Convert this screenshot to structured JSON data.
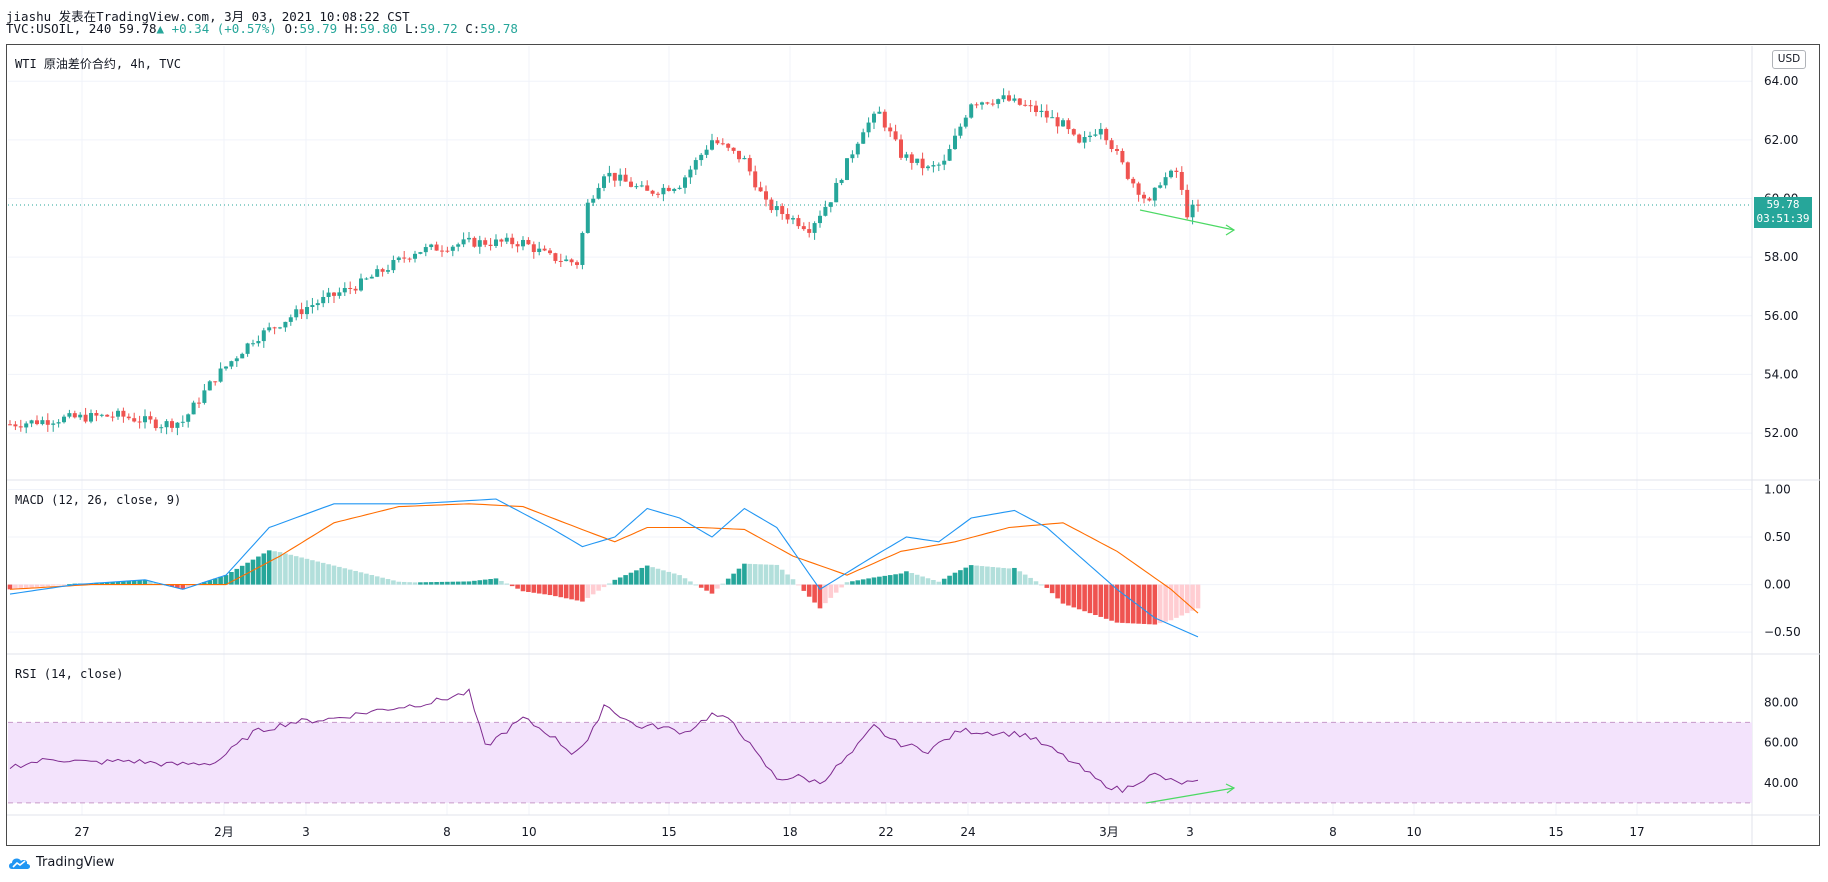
{
  "header": {
    "line1": "jiashu 发表在TradingView.com, 3月 03, 2021 10:08:22 CST",
    "symbol": "TVC:USOIL, 240",
    "last": "59.78",
    "arrow": "▲",
    "change": "+0.34 (+0.57%)",
    "o_label": "O:",
    "o": "59.79",
    "h_label": "H:",
    "h": "59.80",
    "l_label": "L:",
    "l": "59.72",
    "c_label": "C:",
    "c": "59.78"
  },
  "main_pane": {
    "label": "WTI 原油差价合约, 4h, TVC"
  },
  "macd_pane": {
    "label": "MACD (12, 26, close, 9)"
  },
  "rsi_pane": {
    "label": "RSI (14, close)"
  },
  "currency_button": "USD",
  "price_tag": {
    "price": "59.78",
    "countdown": "03:51:39"
  },
  "footer": {
    "brand": "TradingView"
  },
  "colors": {
    "up": "#26a69a",
    "down": "#ef5350",
    "macd": "#2196f3",
    "signal": "#ff6d00",
    "rsi": "#7e2a8f",
    "rsi_band": "#f3e3fc",
    "divergence": "#4cd964"
  },
  "chart_data": [
    {
      "type": "candlestick",
      "title": "WTI 原油差价合约, 4h, TVC",
      "y_ticks": [
        52,
        54,
        56,
        58,
        60,
        62,
        64
      ],
      "y_tick_labels": [
        "52.00",
        "54.00",
        "56.00",
        "58.00",
        "60.00",
        "62.00",
        "64.00"
      ],
      "ylim": [
        50.4,
        65.2
      ],
      "x_tick_labels": [
        "27",
        "2月",
        "3",
        "8",
        "10",
        "15",
        "18",
        "22",
        "24",
        "3月",
        "3",
        "8",
        "10",
        "15",
        "17"
      ],
      "last_price": 59.78,
      "close_keypoints": [
        [
          0,
          52.3
        ],
        [
          10,
          52.5
        ],
        [
          20,
          52.6
        ],
        [
          28,
          52.3
        ],
        [
          32,
          52.4
        ],
        [
          38,
          53.9
        ],
        [
          45,
          55.2
        ],
        [
          55,
          56.3
        ],
        [
          65,
          57.1
        ],
        [
          75,
          58.2
        ],
        [
          85,
          58.5
        ],
        [
          95,
          58.5
        ],
        [
          100,
          58.0
        ],
        [
          105,
          57.8
        ],
        [
          107,
          59.8
        ],
        [
          110,
          60.9
        ],
        [
          118,
          60.2
        ],
        [
          124,
          60.5
        ],
        [
          130,
          62.0
        ],
        [
          136,
          61.3
        ],
        [
          140,
          59.8
        ],
        [
          145,
          59.3
        ],
        [
          148,
          59.0
        ],
        [
          152,
          60.0
        ],
        [
          158,
          62.4
        ],
        [
          161,
          62.9
        ],
        [
          165,
          61.5
        ],
        [
          170,
          61.0
        ],
        [
          173,
          61.2
        ],
        [
          178,
          63.3
        ],
        [
          184,
          63.4
        ],
        [
          190,
          63.0
        ],
        [
          195,
          62.5
        ],
        [
          198,
          61.8
        ],
        [
          202,
          62.5
        ],
        [
          207,
          60.8
        ],
        [
          211,
          59.8
        ],
        [
          213,
          60.6
        ],
        [
          216,
          60.9
        ],
        [
          218,
          59.5
        ],
        [
          220,
          59.78
        ]
      ],
      "annotation": "divergence trend line"
    },
    {
      "type": "line",
      "title": "MACD (12, 26, close, 9)",
      "y_ticks": [
        -0.5,
        0,
        0.5,
        1
      ],
      "y_tick_labels": [
        "−0.50",
        "0.00",
        "0.50",
        "1.00"
      ],
      "ylim": [
        -0.73,
        1.1
      ],
      "series": [
        {
          "name": "MACD",
          "keypoints": [
            [
              0,
              -0.1
            ],
            [
              12,
              0.0
            ],
            [
              25,
              0.05
            ],
            [
              32,
              -0.05
            ],
            [
              40,
              0.1
            ],
            [
              48,
              0.6
            ],
            [
              60,
              0.85
            ],
            [
              75,
              0.85
            ],
            [
              90,
              0.9
            ],
            [
              100,
              0.6
            ],
            [
              106,
              0.4
            ],
            [
              112,
              0.5
            ],
            [
              118,
              0.8
            ],
            [
              124,
              0.7
            ],
            [
              130,
              0.5
            ],
            [
              136,
              0.8
            ],
            [
              142,
              0.6
            ],
            [
              150,
              -0.05
            ],
            [
              160,
              0.3
            ],
            [
              166,
              0.5
            ],
            [
              172,
              0.45
            ],
            [
              178,
              0.7
            ],
            [
              186,
              0.78
            ],
            [
              192,
              0.6
            ],
            [
              200,
              0.2
            ],
            [
              205,
              -0.05
            ],
            [
              212,
              -0.35
            ],
            [
              220,
              -0.55
            ]
          ]
        },
        {
          "name": "Signal",
          "keypoints": [
            [
              0,
              -0.05
            ],
            [
              15,
              0.0
            ],
            [
              30,
              0.0
            ],
            [
              40,
              0.0
            ],
            [
              50,
              0.3
            ],
            [
              60,
              0.65
            ],
            [
              72,
              0.82
            ],
            [
              85,
              0.85
            ],
            [
              95,
              0.82
            ],
            [
              105,
              0.6
            ],
            [
              112,
              0.45
            ],
            [
              118,
              0.6
            ],
            [
              128,
              0.6
            ],
            [
              136,
              0.58
            ],
            [
              145,
              0.3
            ],
            [
              155,
              0.1
            ],
            [
              165,
              0.35
            ],
            [
              175,
              0.45
            ],
            [
              185,
              0.6
            ],
            [
              195,
              0.65
            ],
            [
              205,
              0.35
            ],
            [
              215,
              -0.05
            ],
            [
              220,
              -0.3
            ]
          ]
        },
        {
          "name": "Histogram",
          "values_from": "MACD minus Signal"
        }
      ]
    },
    {
      "type": "line",
      "title": "RSI (14, close)",
      "y_ticks": [
        40,
        60,
        80
      ],
      "y_tick_labels": [
        "40.00",
        "60.00",
        "80.00"
      ],
      "ylim": [
        24,
        104
      ],
      "band": [
        30,
        70
      ],
      "series": [
        {
          "name": "RSI",
          "keypoints": [
            [
              0,
              48
            ],
            [
              8,
              52
            ],
            [
              15,
              50
            ],
            [
              22,
              51
            ],
            [
              30,
              49
            ],
            [
              38,
              50
            ],
            [
              45,
              65
            ],
            [
              52,
              70
            ],
            [
              60,
              72
            ],
            [
              68,
              76
            ],
            [
              78,
              80
            ],
            [
              85,
              85
            ],
            [
              88,
              58
            ],
            [
              95,
              72
            ],
            [
              100,
              64
            ],
            [
              104,
              55
            ],
            [
              107,
              60
            ],
            [
              110,
              79
            ],
            [
              116,
              68
            ],
            [
              120,
              68
            ],
            [
              125,
              65
            ],
            [
              130,
              74
            ],
            [
              134,
              70
            ],
            [
              138,
              55
            ],
            [
              142,
              42
            ],
            [
              146,
              43
            ],
            [
              150,
              40
            ],
            [
              156,
              55
            ],
            [
              160,
              68
            ],
            [
              164,
              60
            ],
            [
              170,
              56
            ],
            [
              176,
              66
            ],
            [
              182,
              65
            ],
            [
              188,
              64
            ],
            [
              194,
              55
            ],
            [
              198,
              48
            ],
            [
              202,
              40
            ],
            [
              206,
              36
            ],
            [
              209,
              41
            ],
            [
              212,
              44
            ],
            [
              216,
              40
            ],
            [
              220,
              40
            ]
          ]
        }
      ],
      "annotation": "divergence trend line"
    }
  ]
}
